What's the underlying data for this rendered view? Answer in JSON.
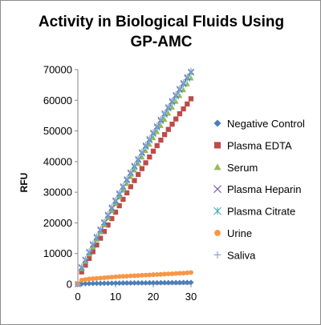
{
  "chart_data": {
    "type": "scatter",
    "title_lines": [
      "Activity in Biological Fluids Using",
      "GP-AMC"
    ],
    "xlabel": "",
    "ylabel": "RFU",
    "xlim": [
      0,
      30
    ],
    "ylim": [
      0,
      70000
    ],
    "x_ticks": [
      0,
      10,
      20,
      30
    ],
    "y_ticks": [
      0,
      10000,
      20000,
      30000,
      40000,
      50000,
      60000,
      70000
    ],
    "grid": false,
    "legend_position": "right",
    "series": [
      {
        "name": "Negative Control",
        "marker": "diamond",
        "color": "#4a7ebb",
        "x_start": 0,
        "x_step": 1,
        "values": [
          0,
          100,
          150,
          200,
          220,
          250,
          270,
          290,
          310,
          330,
          350,
          360,
          380,
          390,
          400,
          410,
          420,
          430,
          440,
          450,
          460,
          470,
          480,
          490,
          500,
          510,
          520,
          530,
          540,
          550,
          560
        ]
      },
      {
        "name": "Plasma EDTA",
        "marker": "square",
        "color": "#be4b48",
        "x_start": 0,
        "x_step": 1,
        "values": [
          0,
          4000,
          6200,
          8400,
          10600,
          12800,
          15000,
          17200,
          19300,
          21400,
          23500,
          25600,
          27700,
          29800,
          31800,
          33800,
          35800,
          37700,
          39600,
          41500,
          43400,
          45200,
          47000,
          48800,
          50500,
          52200,
          53900,
          55600,
          57200,
          58800,
          60500
        ]
      },
      {
        "name": "Serum",
        "marker": "triangle",
        "color": "#98b954",
        "x_start": 0,
        "x_step": 1,
        "values": [
          0,
          5000,
          7400,
          9800,
          12200,
          14600,
          17000,
          19300,
          21600,
          23900,
          26200,
          28400,
          30600,
          32800,
          35000,
          37200,
          39300,
          41400,
          43500,
          45600,
          47700,
          49700,
          51700,
          53700,
          55700,
          57700,
          59600,
          61500,
          63400,
          65300,
          67200
        ]
      },
      {
        "name": "Plasma Heparin",
        "marker": "x",
        "color": "#7d60a0",
        "x_start": 0,
        "x_step": 1,
        "values": [
          0,
          5500,
          8000,
          10500,
          13000,
          15400,
          17800,
          20200,
          22600,
          25000,
          27300,
          29600,
          31900,
          34200,
          36400,
          38600,
          40800,
          43000,
          45200,
          47300,
          49400,
          51500,
          53600,
          55700,
          57700,
          59700,
          61700,
          63700,
          65600,
          67500,
          69300
        ]
      },
      {
        "name": "Plasma Citrate",
        "marker": "asterisk",
        "color": "#46aac5",
        "x_start": 0,
        "x_step": 1,
        "values": [
          0,
          5300,
          7800,
          10300,
          12700,
          15100,
          17500,
          19900,
          22300,
          24600,
          26900,
          29200,
          31500,
          33800,
          36000,
          38200,
          40400,
          42600,
          44800,
          46900,
          49000,
          51100,
          53200,
          55300,
          57300,
          59300,
          61300,
          63300,
          65200,
          67100,
          69000
        ]
      },
      {
        "name": "Urine",
        "marker": "circle",
        "color": "#f79646",
        "x_start": 0,
        "x_step": 1,
        "values": [
          0,
          1300,
          1500,
          1700,
          1800,
          1900,
          2000,
          2100,
          2200,
          2300,
          2400,
          2500,
          2550,
          2600,
          2700,
          2750,
          2800,
          2900,
          2950,
          3000,
          3100,
          3150,
          3200,
          3300,
          3350,
          3400,
          3500,
          3550,
          3600,
          3700,
          3800
        ]
      },
      {
        "name": "Saliva",
        "marker": "plus",
        "color": "#8aa6d6",
        "x_start": 0,
        "x_step": 1,
        "values": [
          0,
          5800,
          8300,
          10800,
          13300,
          15700,
          18100,
          20500,
          22900,
          25300,
          27600,
          29900,
          32200,
          34500,
          36700,
          38900,
          41100,
          43300,
          45500,
          47600,
          49700,
          51800,
          53900,
          56000,
          58000,
          60000,
          62000,
          64000,
          65900,
          67800,
          69700
        ]
      }
    ]
  }
}
